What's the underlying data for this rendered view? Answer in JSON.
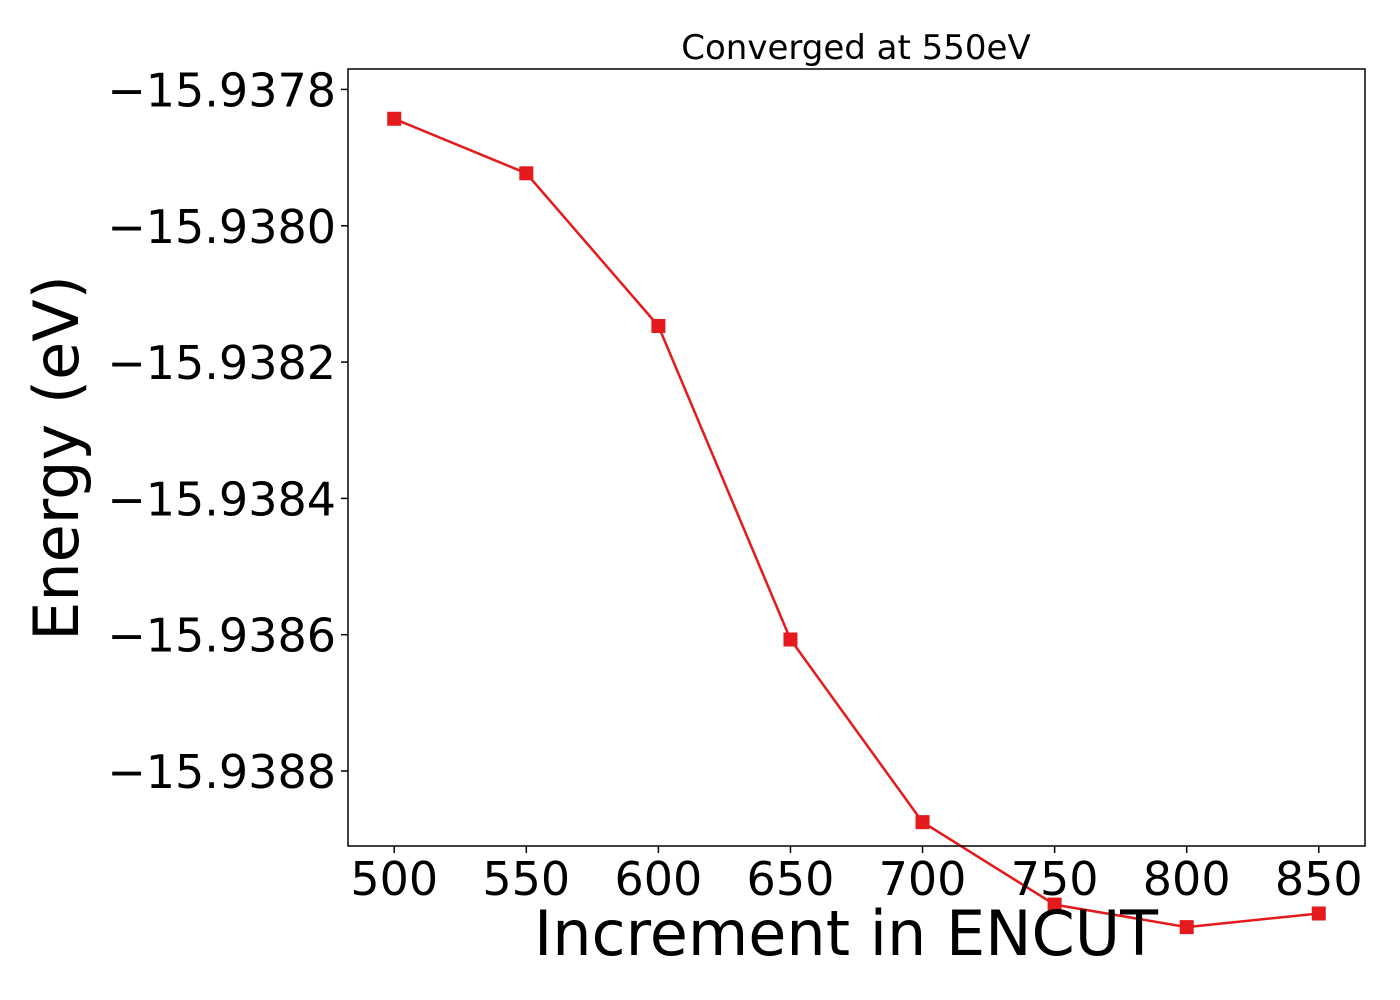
{
  "chart_data": {
    "type": "line",
    "title": "Converged at 550eV",
    "xlabel": "Increment in ENCUT",
    "ylabel": "Energy (eV)",
    "x": [
      500,
      550,
      600,
      650,
      700,
      750,
      800,
      850
    ],
    "xticks": [
      500,
      550,
      600,
      650,
      700,
      750,
      800,
      850
    ],
    "xtick_labels": [
      "500",
      "550",
      "600",
      "650",
      "700",
      "750",
      "800",
      "850"
    ],
    "yticks": [
      -15.9378,
      -15.938,
      -15.9382,
      -15.9384,
      -15.9386,
      -15.9388
    ],
    "ytick_labels": [
      "−15.9378",
      "−15.9380",
      "−15.9382",
      "−15.9384",
      "−15.9386",
      "−15.9388"
    ],
    "xlim": [
      482.5,
      867.5
    ],
    "ylim": [
      -15.93891,
      -15.93777
    ],
    "grid": false,
    "series": [
      {
        "values": [
          -15.937843,
          -15.937923,
          -15.938147,
          -15.938607,
          -15.938875,
          -15.938996,
          -15.939029,
          -15.939009
        ],
        "color": "#e41a1c",
        "marker": "square"
      }
    ]
  }
}
